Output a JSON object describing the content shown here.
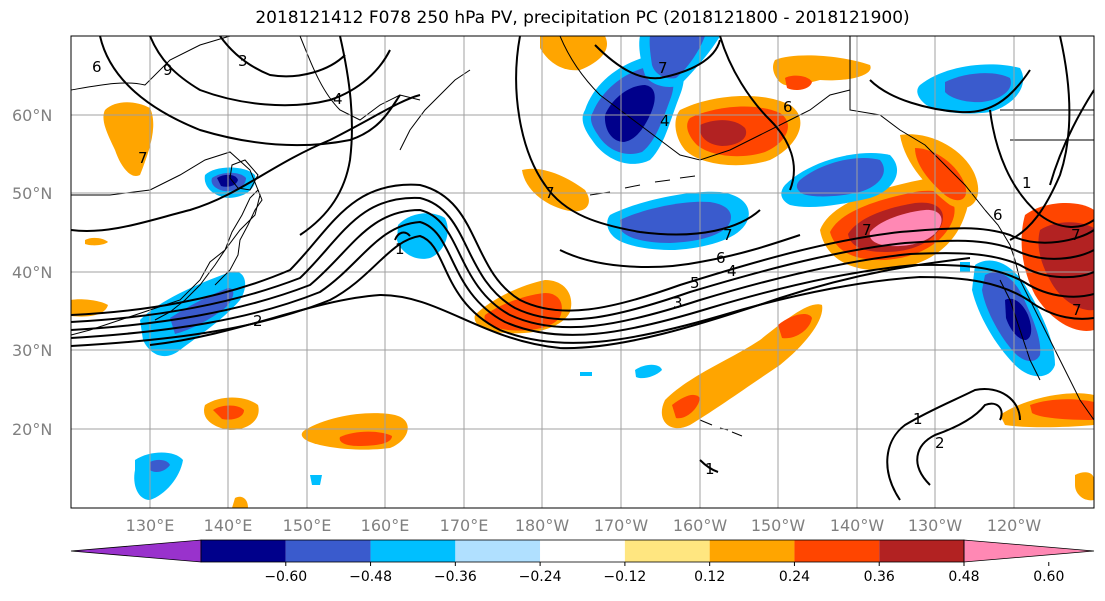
{
  "title": "2018121412 F078 250 hPa PV, precipitation PC (2018121800 - 2018121900)",
  "map": {
    "lat_labels": [
      "60°N",
      "50°N",
      "40°N",
      "30°N",
      "20°N"
    ],
    "lon_labels": [
      "130°E",
      "140°E",
      "150°E",
      "160°E",
      "170°E",
      "180°W",
      "170°W",
      "160°W",
      "150°W",
      "140°W",
      "130°W",
      "120°W"
    ],
    "pv_contour_labels": [
      "6",
      "9",
      "3",
      "4",
      "7",
      "7",
      "1",
      "4",
      "7",
      "7",
      "1",
      "2",
      "7",
      "6",
      "3",
      "5",
      "4",
      "6",
      "7",
      "1",
      "2",
      "1",
      "6",
      "7"
    ]
  },
  "colorbar": {
    "levels": [
      "−0.60",
      "−0.48",
      "−0.36",
      "−0.24",
      "−0.12",
      "0.12",
      "0.24",
      "0.36",
      "0.48",
      "0.60"
    ],
    "colors": [
      "#9932cc",
      "#00008b",
      "#3a5bcd",
      "#00bfff",
      "#b0e0ff",
      "#ffffff",
      "#ffe680",
      "#ffa500",
      "#ff4500",
      "#b22222",
      "#ff88b4"
    ]
  }
}
